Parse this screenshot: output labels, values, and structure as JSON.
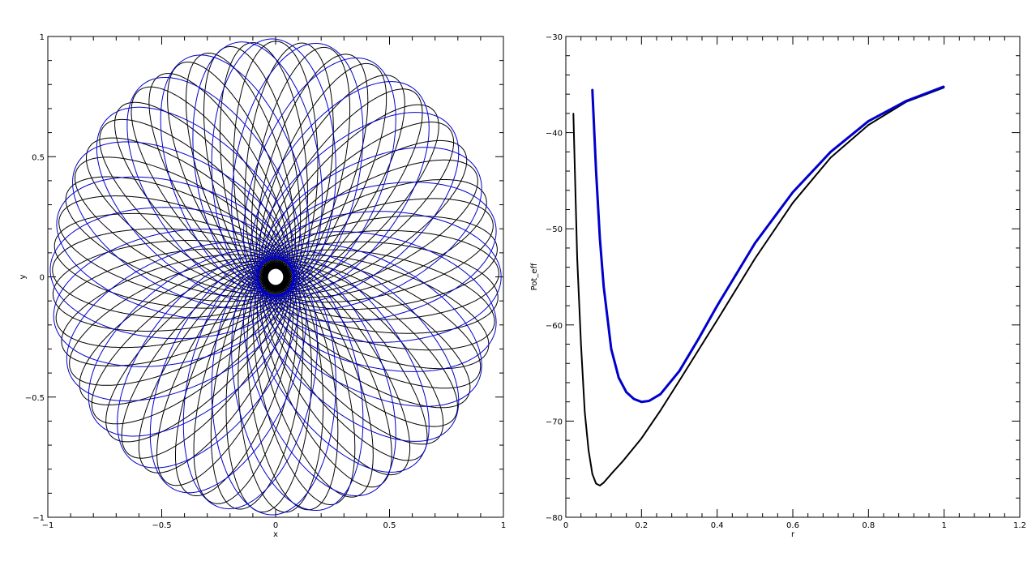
{
  "colors": {
    "axis": "#000000",
    "series_black": "#000000",
    "series_blue": "#0000cc",
    "background": "#ffffff"
  },
  "chart_data": [
    {
      "type": "line",
      "title": "",
      "xlabel": "x",
      "ylabel": "y",
      "xlim": [
        -1,
        1
      ],
      "ylim": [
        -1,
        1
      ],
      "xticks": [
        -1,
        -0.5,
        0,
        0.5,
        1
      ],
      "xtick_labels": [
        "−1",
        "−0.5",
        "0",
        "0.5",
        "1"
      ],
      "yticks": [
        -1,
        -0.5,
        0,
        0.5,
        1
      ],
      "ytick_labels": [
        "−1",
        "−0.5",
        "0",
        "0.5",
        "1"
      ],
      "grid": false,
      "legend": "none",
      "series": [
        {
          "color": "#000000",
          "orbit": {
            "apocenter": 0.98,
            "pericenter": 0.035,
            "petal_rotation_deg": 6.3,
            "loops": 57,
            "start_angle_deg": 90
          }
        },
        {
          "color": "#0000cc",
          "orbit": {
            "apocenter": 0.99,
            "pericenter": 0.075,
            "petal_rotation_deg": 13.0,
            "loops": 28,
            "start_angle_deg": 100
          }
        }
      ]
    },
    {
      "type": "line",
      "title": "",
      "xlabel": "r",
      "ylabel": "Pot_eff",
      "xlim": [
        0,
        1.2
      ],
      "ylim": [
        -80,
        -30
      ],
      "xticks": [
        0,
        0.2,
        0.4,
        0.6,
        0.8,
        1.0,
        1.2
      ],
      "xtick_labels": [
        "0",
        "0.2",
        "0.4",
        "0.6",
        "0.8",
        "1",
        "1.2"
      ],
      "yticks": [
        -80,
        -70,
        -60,
        -50,
        -40,
        -30
      ],
      "ytick_labels": [
        "−80",
        "−70",
        "−60",
        "−50",
        "−40",
        "−30"
      ],
      "grid": false,
      "legend": "none",
      "series": [
        {
          "color": "#000000",
          "x": [
            0.02,
            0.03,
            0.04,
            0.05,
            0.06,
            0.07,
            0.08,
            0.09,
            0.1,
            0.12,
            0.15,
            0.2,
            0.25,
            0.3,
            0.4,
            0.5,
            0.6,
            0.7,
            0.8,
            0.9,
            1.0
          ],
          "y": [
            -38,
            -53,
            -62,
            -69,
            -73,
            -75.5,
            -76.5,
            -76.7,
            -76.4,
            -75.5,
            -74.2,
            -71.8,
            -68.9,
            -65.8,
            -59.5,
            -53.1,
            -47.3,
            -42.6,
            -39.2,
            -36.8,
            -35.3
          ]
        },
        {
          "color": "#0000cc",
          "x": [
            0.07,
            0.08,
            0.09,
            0.1,
            0.12,
            0.14,
            0.16,
            0.18,
            0.2,
            0.22,
            0.25,
            0.3,
            0.35,
            0.4,
            0.5,
            0.6,
            0.7,
            0.8,
            0.9,
            1.0
          ],
          "y": [
            -35.5,
            -44,
            -51,
            -56,
            -62.5,
            -65.5,
            -67,
            -67.7,
            -68,
            -67.9,
            -67.2,
            -64.8,
            -61.5,
            -58,
            -51.5,
            -46.2,
            -42,
            -38.8,
            -36.7,
            -35.2
          ]
        }
      ]
    }
  ]
}
